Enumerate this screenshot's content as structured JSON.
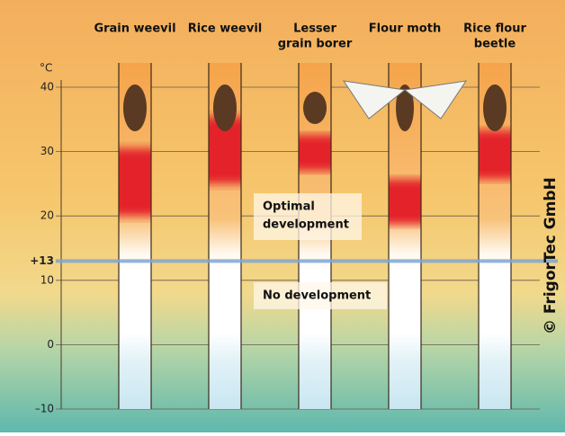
{
  "chart_data": {
    "type": "range",
    "categories": [
      [
        "Grain weevil"
      ],
      [
        "Rice weevil"
      ],
      [
        "Lesser",
        "grain borer"
      ],
      [
        "Flour moth"
      ],
      [
        "Rice flour",
        "beetle"
      ]
    ],
    "low": [
      20,
      25,
      27,
      18.7,
      25.7
    ],
    "high": [
      30.5,
      35.4,
      32.6,
      25.7,
      33.3
    ],
    "color": "#e4202c",
    "y_unit": "°C",
    "ylim": [
      -10,
      40
    ],
    "yticks": [
      {
        "value": -10,
        "label": "–10"
      },
      0,
      10,
      20,
      30,
      40
    ],
    "reference_line": {
      "value": 13,
      "label": "+13",
      "color": "#7fa6d4"
    },
    "grid": true,
    "annotations": [
      [
        "Optimal",
        "development"
      ],
      [
        "No development"
      ]
    ],
    "credit": "© FrigorTec GmbH"
  }
}
